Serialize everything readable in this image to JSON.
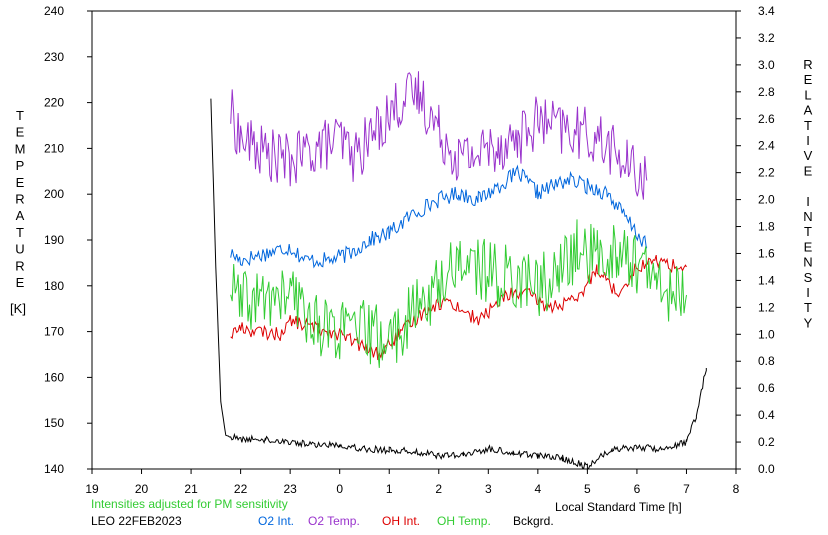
{
  "chart_data": {
    "type": "line",
    "title": "",
    "xlabel": "Local Standard Time [h]",
    "ylabel_left": "TEMPERATURE",
    "ylabel_left_unit": "[K]",
    "ylabel_right": "RELATIVE INTENSITY",
    "note": "Intensities adjusted for PM sensitivity",
    "station_date": "LEO 22FEB2023",
    "x_ticks": [
      19,
      20,
      21,
      22,
      23,
      0,
      1,
      2,
      3,
      4,
      5,
      6,
      7,
      8
    ],
    "x_range_hours": [
      19,
      32
    ],
    "y_left_range": [
      140,
      240
    ],
    "y_left_ticks": [
      140,
      150,
      160,
      170,
      180,
      190,
      200,
      210,
      220,
      230,
      240
    ],
    "y_right_range": [
      0.0,
      3.4
    ],
    "y_right_ticks": [
      "0.0",
      "0.2",
      "0.4",
      "0.6",
      "0.8",
      "1.0",
      "1.2",
      "1.4",
      "1.6",
      "1.8",
      "2.0",
      "2.2",
      "2.4",
      "2.6",
      "2.8",
      "3.0",
      "3.2",
      "3.4"
    ],
    "legend_position": "bottom",
    "grid": false,
    "series": [
      {
        "name": "O2 Int.",
        "color": "#0066dd",
        "axis": "right",
        "x": [
          21.8,
          22.0,
          22.5,
          23.0,
          23.3,
          23.8,
          24.2,
          24.6,
          25.0,
          25.5,
          26.0,
          26.4,
          26.8,
          27.2,
          27.6,
          28.0,
          28.6,
          29.0,
          29.4,
          29.8,
          30.2
        ],
        "y": [
          1.6,
          1.55,
          1.6,
          1.65,
          1.55,
          1.55,
          1.6,
          1.7,
          1.75,
          1.9,
          2.0,
          2.05,
          2.0,
          2.1,
          2.2,
          2.05,
          2.15,
          2.1,
          2.05,
          1.85,
          1.65
        ]
      },
      {
        "name": "O2 Temp.",
        "color": "#9933cc",
        "axis": "left",
        "x": [
          21.8,
          22.0,
          22.5,
          23.0,
          23.5,
          24.0,
          24.3,
          24.8,
          25.2,
          25.6,
          26.0,
          26.4,
          26.8,
          27.2,
          27.6,
          28.0,
          28.5,
          29.0,
          29.4,
          29.8,
          30.2
        ],
        "y": [
          218,
          212,
          209,
          207,
          210,
          212,
          208,
          215,
          220,
          222,
          214,
          208,
          209,
          211,
          212,
          216,
          214,
          213,
          211,
          206,
          203
        ]
      },
      {
        "name": "OH Int.",
        "color": "#dd0000",
        "axis": "right",
        "x": [
          21.8,
          22.0,
          22.3,
          22.8,
          23.0,
          23.5,
          24.0,
          24.5,
          24.8,
          25.2,
          25.8,
          26.2,
          26.8,
          27.4,
          27.8,
          28.2,
          28.8,
          29.2,
          29.6,
          30.0,
          30.4,
          30.8,
          31.0
        ],
        "y": [
          1.0,
          1.05,
          1.02,
          1.0,
          1.1,
          1.05,
          1.0,
          0.9,
          0.85,
          1.0,
          1.2,
          1.25,
          1.1,
          1.3,
          1.3,
          1.2,
          1.25,
          1.5,
          1.3,
          1.5,
          1.55,
          1.5,
          1.5
        ]
      },
      {
        "name": "OH Temp.",
        "color": "#33cc33",
        "axis": "left",
        "x": [
          21.8,
          22.0,
          23.0,
          23.5,
          24.0,
          24.5,
          25.0,
          25.5,
          26.0,
          26.4,
          26.8,
          27.2,
          27.6,
          28.0,
          28.4,
          28.8,
          29.2,
          29.6,
          30.0,
          30.4,
          30.8,
          31.0
        ],
        "y": [
          180,
          176,
          178,
          172,
          170,
          170,
          168,
          174,
          180,
          186,
          184,
          182,
          182,
          180,
          182,
          188,
          186,
          188,
          185,
          180,
          178,
          178
        ]
      },
      {
        "name": "Bckgrd.",
        "color": "#000000",
        "axis": "right",
        "x": [
          21.4,
          21.5,
          21.6,
          21.7,
          22.0,
          22.5,
          23.0,
          23.5,
          24.0,
          24.5,
          25.0,
          25.5,
          26.0,
          26.5,
          27.0,
          27.5,
          28.0,
          28.5,
          29.0,
          29.5,
          30.0,
          30.5,
          31.0,
          31.2,
          31.4
        ],
        "y": [
          2.75,
          1.5,
          0.5,
          0.25,
          0.22,
          0.22,
          0.2,
          0.18,
          0.18,
          0.15,
          0.14,
          0.13,
          0.1,
          0.1,
          0.15,
          0.12,
          0.1,
          0.08,
          0.02,
          0.15,
          0.16,
          0.15,
          0.2,
          0.4,
          0.75
        ]
      }
    ]
  }
}
